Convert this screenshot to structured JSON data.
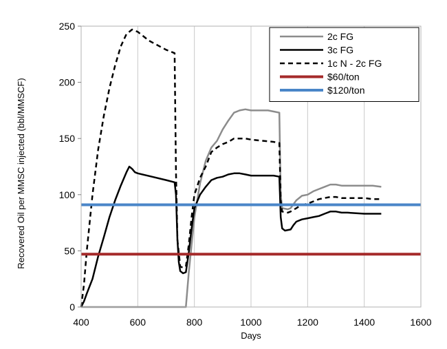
{
  "chart_data": {
    "type": "line",
    "title": "",
    "xlabel": "Days",
    "ylabel": "Recovered Oil per MMSC injected (bbl/MMSCF)",
    "xlim": [
      400,
      1600
    ],
    "ylim": [
      0,
      250
    ],
    "xticks": [
      "400",
      "600",
      "800",
      "1000",
      "1200",
      "1400",
      "1600"
    ],
    "yticks": [
      "0",
      "50",
      "100",
      "150",
      "200",
      "250"
    ],
    "grid": "vertical",
    "legend_position": "top-right",
    "series": [
      {
        "name": "2c FG",
        "color": "#8c8c8c",
        "dash": "solid",
        "points": [
          [
            400,
            0
          ],
          [
            760,
            0
          ],
          [
            770,
            0
          ],
          [
            780,
            30
          ],
          [
            800,
            80
          ],
          [
            820,
            110
          ],
          [
            840,
            130
          ],
          [
            860,
            142
          ],
          [
            880,
            148
          ],
          [
            900,
            158
          ],
          [
            920,
            166
          ],
          [
            940,
            173
          ],
          [
            960,
            175
          ],
          [
            980,
            176
          ],
          [
            1000,
            175
          ],
          [
            1040,
            175
          ],
          [
            1060,
            175
          ],
          [
            1080,
            174
          ],
          [
            1100,
            173
          ],
          [
            1105,
            100
          ],
          [
            1110,
            88
          ],
          [
            1130,
            87
          ],
          [
            1140,
            88
          ],
          [
            1160,
            95
          ],
          [
            1180,
            99
          ],
          [
            1200,
            100
          ],
          [
            1220,
            103
          ],
          [
            1240,
            105
          ],
          [
            1260,
            107
          ],
          [
            1280,
            109
          ],
          [
            1300,
            109
          ],
          [
            1320,
            108
          ],
          [
            1340,
            108
          ],
          [
            1400,
            108
          ],
          [
            1430,
            108
          ],
          [
            1460,
            107
          ]
        ]
      },
      {
        "name": "3c FG",
        "color": "#000000",
        "dash": "solid",
        "points": [
          [
            400,
            0
          ],
          [
            410,
            5
          ],
          [
            420,
            12
          ],
          [
            440,
            25
          ],
          [
            460,
            45
          ],
          [
            480,
            62
          ],
          [
            500,
            80
          ],
          [
            520,
            95
          ],
          [
            540,
            108
          ],
          [
            560,
            120
          ],
          [
            570,
            125
          ],
          [
            580,
            123
          ],
          [
            590,
            120
          ],
          [
            600,
            119
          ],
          [
            650,
            116
          ],
          [
            700,
            113
          ],
          [
            730,
            111
          ],
          [
            735,
            100
          ],
          [
            740,
            60
          ],
          [
            745,
            40
          ],
          [
            750,
            32
          ],
          [
            760,
            30
          ],
          [
            770,
            31
          ],
          [
            780,
            48
          ],
          [
            790,
            70
          ],
          [
            800,
            88
          ],
          [
            820,
            100
          ],
          [
            840,
            107
          ],
          [
            860,
            113
          ],
          [
            880,
            115
          ],
          [
            900,
            116
          ],
          [
            920,
            118
          ],
          [
            940,
            119
          ],
          [
            960,
            119
          ],
          [
            980,
            118
          ],
          [
            1000,
            117
          ],
          [
            1040,
            117
          ],
          [
            1080,
            117
          ],
          [
            1100,
            116
          ],
          [
            1105,
            80
          ],
          [
            1110,
            70
          ],
          [
            1120,
            68
          ],
          [
            1140,
            69
          ],
          [
            1150,
            73
          ],
          [
            1160,
            76
          ],
          [
            1180,
            78
          ],
          [
            1200,
            79
          ],
          [
            1220,
            80
          ],
          [
            1240,
            81
          ],
          [
            1260,
            83
          ],
          [
            1280,
            85
          ],
          [
            1300,
            85
          ],
          [
            1320,
            84
          ],
          [
            1340,
            84
          ],
          [
            1400,
            83
          ],
          [
            1430,
            83
          ],
          [
            1460,
            83
          ]
        ]
      },
      {
        "name": "1c N - 2c FG",
        "color": "#000000",
        "dash": "dashed",
        "points": [
          [
            400,
            0
          ],
          [
            410,
            20
          ],
          [
            420,
            50
          ],
          [
            440,
            100
          ],
          [
            460,
            140
          ],
          [
            480,
            170
          ],
          [
            500,
            195
          ],
          [
            520,
            215
          ],
          [
            540,
            232
          ],
          [
            560,
            243
          ],
          [
            580,
            247
          ],
          [
            600,
            245
          ],
          [
            640,
            237
          ],
          [
            700,
            229
          ],
          [
            730,
            226
          ],
          [
            735,
            120
          ],
          [
            740,
            60
          ],
          [
            750,
            36
          ],
          [
            760,
            35
          ],
          [
            770,
            36
          ],
          [
            780,
            55
          ],
          [
            790,
            80
          ],
          [
            800,
            100
          ],
          [
            820,
            115
          ],
          [
            840,
            125
          ],
          [
            860,
            138
          ],
          [
            880,
            142
          ],
          [
            900,
            145
          ],
          [
            920,
            147
          ],
          [
            940,
            150
          ],
          [
            960,
            150
          ],
          [
            980,
            150
          ],
          [
            1000,
            149
          ],
          [
            1040,
            148
          ],
          [
            1080,
            147
          ],
          [
            1100,
            146
          ],
          [
            1105,
            95
          ],
          [
            1110,
            85
          ],
          [
            1130,
            84
          ],
          [
            1140,
            85
          ],
          [
            1160,
            88
          ],
          [
            1180,
            91
          ],
          [
            1200,
            92
          ],
          [
            1220,
            94
          ],
          [
            1240,
            96
          ],
          [
            1260,
            97
          ],
          [
            1280,
            98
          ],
          [
            1300,
            98
          ],
          [
            1320,
            97
          ],
          [
            1340,
            97
          ],
          [
            1400,
            97
          ],
          [
            1430,
            96
          ],
          [
            1460,
            96
          ]
        ]
      },
      {
        "name": "$60/ton",
        "color": "#a52a2a",
        "dash": "solid",
        "width": 4,
        "points": [
          [
            400,
            47
          ],
          [
            1600,
            47
          ]
        ]
      },
      {
        "name": "$120/ton",
        "color": "#4a86c8",
        "dash": "solid",
        "width": 4,
        "points": [
          [
            400,
            91
          ],
          [
            1600,
            91
          ]
        ]
      }
    ]
  }
}
